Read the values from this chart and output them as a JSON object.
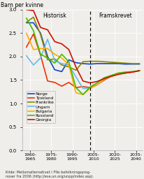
{
  "ylabel": "Barn per kvinne",
  "source_text": "Kilde: Mellomalternativet i FNs befolkningsprog-\nnoser fra 2006 (http://esa.un.org/unpp/index.asp).",
  "historisk_label": "Historisk",
  "framskrevet_label": "Framskrevet",
  "dashed_line_x": 2005,
  "ylim": [
    0.0,
    3.0
  ],
  "yticks": [
    0.0,
    0.5,
    1.0,
    1.5,
    2.0,
    2.5,
    3.0
  ],
  "xlim": [
    1957,
    2042
  ],
  "xtick_labels": [
    "1960-\n1965",
    "1975-\n1980",
    "1990-\n1995",
    "2005-\n2010",
    "2020-\n2025",
    "2035-\n2040"
  ],
  "xtick_positions": [
    1962.5,
    1977.5,
    1992.5,
    2007.5,
    2022.5,
    2037.5
  ],
  "bg_color": "#e8e8e8",
  "plot_bg_color": "#f0eeea",
  "series": {
    "Norge": {
      "color": "#1144cc",
      "lw": 1.2,
      "x": [
        1960,
        1965,
        1970,
        1975,
        1980,
        1985,
        1990,
        1995,
        2000,
        2005,
        2010,
        2015,
        2020,
        2025,
        2030,
        2035,
        2040
      ],
      "y": [
        2.72,
        2.72,
        2.5,
        2.0,
        1.72,
        1.68,
        1.93,
        1.87,
        1.85,
        1.84,
        1.85,
        1.85,
        1.85,
        1.85,
        1.84,
        1.84,
        1.84
      ]
    },
    "Tyskland": {
      "color": "#ee3300",
      "lw": 1.2,
      "x": [
        1960,
        1965,
        1970,
        1975,
        1980,
        1985,
        1990,
        1995,
        2000,
        2005,
        2010,
        2015,
        2020,
        2025,
        2030,
        2035,
        2040
      ],
      "y": [
        2.2,
        2.48,
        2.03,
        1.48,
        1.45,
        1.37,
        1.45,
        1.34,
        1.36,
        1.34,
        1.4,
        1.5,
        1.58,
        1.63,
        1.65,
        1.67,
        1.7
      ]
    },
    "Frankrike": {
      "color": "#888800",
      "lw": 1.2,
      "x": [
        1960,
        1965,
        1970,
        1975,
        1980,
        1985,
        1990,
        1995,
        2000,
        2005,
        2010,
        2015,
        2020,
        2025,
        2030,
        2035,
        2040
      ],
      "y": [
        2.73,
        2.84,
        2.47,
        1.93,
        1.95,
        1.82,
        1.78,
        1.71,
        1.89,
        1.9,
        1.9,
        1.89,
        1.88,
        1.87,
        1.86,
        1.85,
        1.85
      ]
    },
    "Ungarn": {
      "color": "#66bbee",
      "lw": 1.2,
      "x": [
        1960,
        1965,
        1970,
        1975,
        1980,
        1985,
        1990,
        1995,
        2000,
        2005,
        2010,
        2015,
        2020,
        2025,
        2030,
        2035,
        2040
      ],
      "y": [
        2.02,
        1.82,
        1.97,
        2.37,
        1.91,
        1.85,
        1.82,
        1.57,
        1.32,
        1.32,
        1.4,
        1.52,
        1.58,
        1.63,
        1.65,
        1.67,
        1.7
      ]
    },
    "Bulgaria": {
      "color": "#ffaa00",
      "lw": 1.2,
      "x": [
        1960,
        1965,
        1970,
        1975,
        1980,
        1985,
        1990,
        1995,
        2000,
        2005,
        2010,
        2015,
        2020,
        2025,
        2030,
        2035,
        2040
      ],
      "y": [
        2.5,
        2.15,
        2.17,
        2.17,
        2.05,
        1.97,
        1.82,
        1.23,
        1.19,
        1.32,
        1.4,
        1.52,
        1.58,
        1.63,
        1.65,
        1.67,
        1.7
      ]
    },
    "Russland": {
      "color": "#44bb00",
      "lw": 1.2,
      "x": [
        1960,
        1965,
        1970,
        1975,
        1980,
        1985,
        1990,
        1995,
        2000,
        2005,
        2010,
        2015,
        2020,
        2025,
        2030,
        2035,
        2040
      ],
      "y": [
        2.82,
        2.55,
        2.05,
        1.97,
        1.86,
        2.05,
        1.89,
        1.34,
        1.19,
        1.35,
        1.44,
        1.55,
        1.6,
        1.65,
        1.67,
        1.68,
        1.7
      ]
    },
    "Georgia": {
      "color": "#cc1100",
      "lw": 1.2,
      "x": [
        1960,
        1965,
        1970,
        1975,
        1980,
        1985,
        1990,
        1995,
        2000,
        2005,
        2010,
        2015,
        2020,
        2025,
        2030,
        2035,
        2040
      ],
      "y": [
        3.0,
        2.98,
        2.62,
        2.57,
        2.32,
        2.27,
        2.15,
        1.78,
        1.48,
        1.44,
        1.47,
        1.53,
        1.58,
        1.62,
        1.65,
        1.67,
        1.7
      ]
    }
  }
}
